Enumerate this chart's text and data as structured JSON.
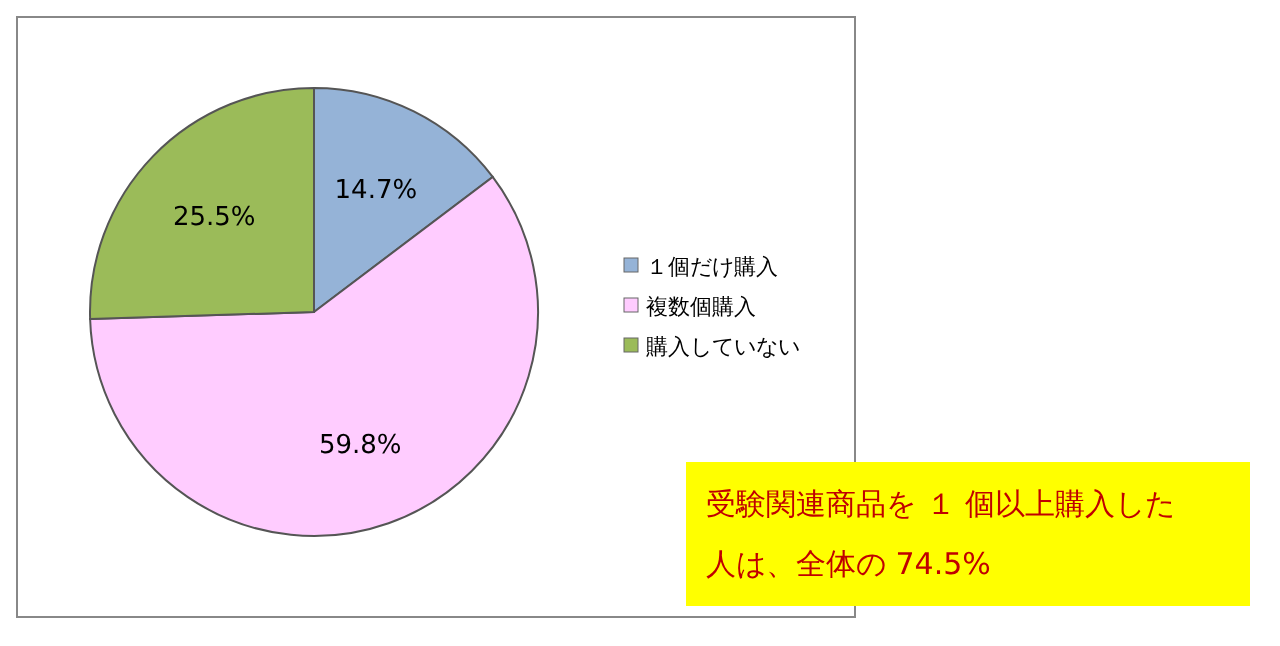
{
  "chart_data": {
    "type": "pie",
    "categories": [
      "１個だけ購入",
      "複数個購入",
      "購入していない"
    ],
    "values": [
      14.7,
      59.8,
      25.5
    ],
    "colors": [
      "#95b3d7",
      "#ffccff",
      "#9bbb59"
    ],
    "value_labels": [
      "14.7%",
      "59.8%",
      "25.5%"
    ],
    "legend": "right",
    "annotations": [
      "受験関連商品を １ 個以上購入した人は、全体の 74.5%"
    ]
  }
}
